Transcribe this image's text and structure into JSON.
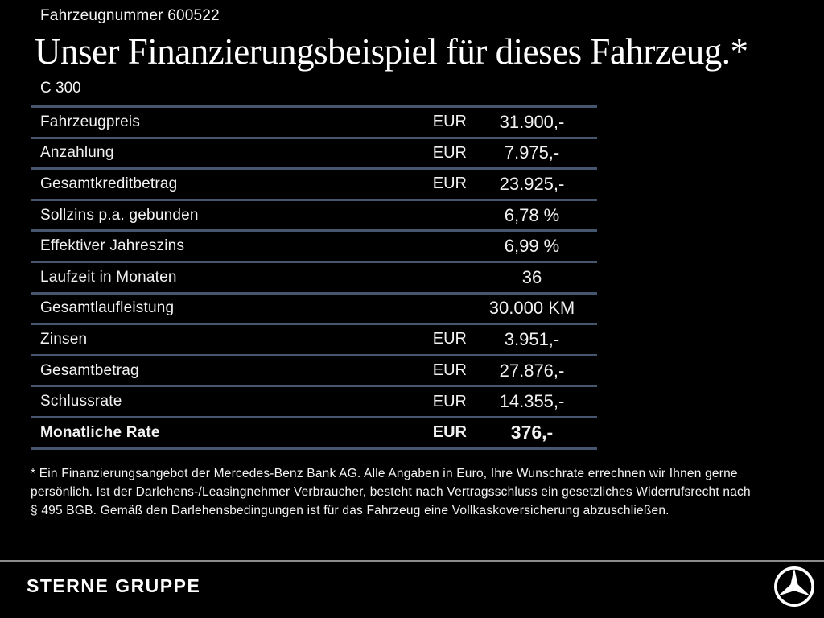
{
  "header": {
    "vehicle_number": "Fahrzeugnummer 600522",
    "title": "Unser Finanzierungsbeispiel für dieses Fahrzeug.*",
    "model": "C 300"
  },
  "table": {
    "rows": [
      {
        "label": "Fahrzeugpreis",
        "currency": "EUR",
        "value": "31.900,-",
        "bold": false
      },
      {
        "label": "Anzahlung",
        "currency": "EUR",
        "value": "7.975,-",
        "bold": false
      },
      {
        "label": "Gesamtkreditbetrag",
        "currency": "EUR",
        "value": "23.925,-",
        "bold": false
      },
      {
        "label": "Sollzins p.a. gebunden",
        "currency": "",
        "value": "6,78 %",
        "bold": false
      },
      {
        "label": "Effektiver Jahreszins",
        "currency": "",
        "value": "6,99 %",
        "bold": false
      },
      {
        "label": "Laufzeit in Monaten",
        "currency": "",
        "value": "36",
        "bold": false
      },
      {
        "label": "Gesamtlaufleistung",
        "currency": "",
        "value": "30.000 KM",
        "bold": false
      },
      {
        "label": "Zinsen",
        "currency": "EUR",
        "value": "3.951,-",
        "bold": false
      },
      {
        "label": "Gesamtbetrag",
        "currency": "EUR",
        "value": "27.876,-",
        "bold": false
      },
      {
        "label": "Schlussrate",
        "currency": "EUR",
        "value": "14.355,-",
        "bold": false
      },
      {
        "label": "Monatliche Rate",
        "currency": "EUR",
        "value": "376,-",
        "bold": true
      }
    ]
  },
  "footnote": {
    "lines": [
      "* Ein Finanzierungsangebot der Mercedes-Benz Bank AG. Alle Angaben in Euro, Ihre Wunschrate errechnen wir Ihnen gerne",
      "persönlich. Ist der Darlehens-/Leasingnehmer Verbraucher, besteht nach Vertragsschluss ein gesetzliches Widerrufsrecht nach",
      "§ 495 BGB. Gemäß den Darlehensbedingungen ist für das Fahrzeug eine Vollkaskoversicherung abzuschließen."
    ]
  },
  "footer": {
    "dealer_name": "STERNE GRUPPE",
    "logo": "mercedes-benz-star-icon"
  },
  "colors": {
    "background": "#000000",
    "text": "#f2f2f2",
    "table_line": "#46566f",
    "footer_divider": "#8d8d8d"
  }
}
